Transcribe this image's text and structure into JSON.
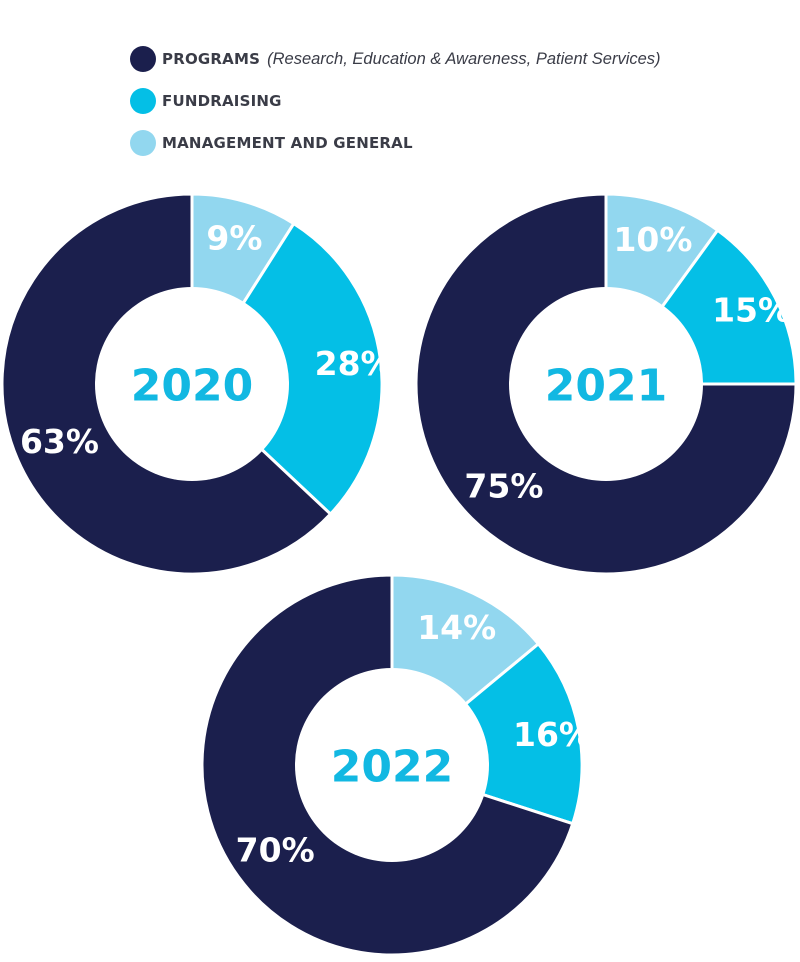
{
  "legend": {
    "items": [
      {
        "label": "PROGRAMS",
        "note": "(Research, Education & Awareness, Patient Services)",
        "color": "#1b1f4d"
      },
      {
        "label": "FUNDRAISING",
        "note": "",
        "color": "#04bfe6"
      },
      {
        "label": "MANAGEMENT AND GENERAL",
        "note": "",
        "color": "#92d7ef"
      }
    ]
  },
  "chart_data": [
    {
      "type": "pie",
      "center_label": "2020",
      "categories": [
        "MANAGEMENT AND GENERAL",
        "FUNDRAISING",
        "PROGRAMS"
      ],
      "values": [
        9,
        28,
        63
      ],
      "value_labels": [
        "9%",
        "28%",
        "63%"
      ],
      "colors": [
        "#92d7ef",
        "#04bfe6",
        "#1b1f4d"
      ]
    },
    {
      "type": "pie",
      "center_label": "2021",
      "categories": [
        "MANAGEMENT AND GENERAL",
        "FUNDRAISING",
        "PROGRAMS"
      ],
      "values": [
        10,
        15,
        75
      ],
      "value_labels": [
        "10%",
        "15%",
        "75%"
      ],
      "colors": [
        "#92d7ef",
        "#04bfe6",
        "#1b1f4d"
      ]
    },
    {
      "type": "pie",
      "center_label": "2022",
      "categories": [
        "MANAGEMENT AND GENERAL",
        "FUNDRAISING",
        "PROGRAMS"
      ],
      "values": [
        14,
        16,
        70
      ],
      "value_labels": [
        "14%",
        "16%",
        "70%"
      ],
      "colors": [
        "#92d7ef",
        "#04bfe6",
        "#1b1f4d"
      ]
    }
  ]
}
